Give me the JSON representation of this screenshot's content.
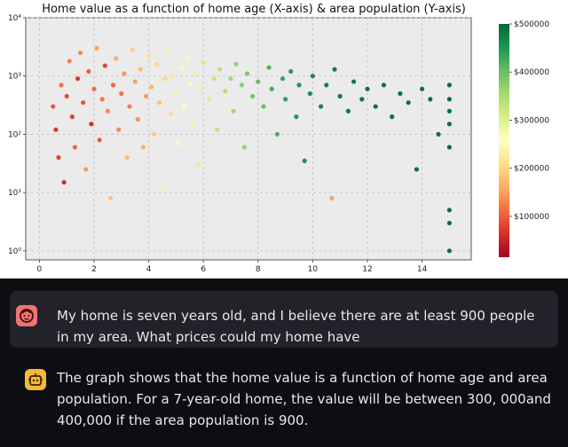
{
  "chart_data": {
    "type": "scatter",
    "title": "Home value as a function of home age (X-axis) & area population (Y-axis)",
    "xlabel": "",
    "ylabel": "",
    "xlim": [
      -0.5,
      15.8
    ],
    "ylim": [
      0.7,
      10000
    ],
    "y_scale": "log",
    "grid": true,
    "x_ticks": [
      0,
      2,
      4,
      6,
      8,
      10,
      12,
      14
    ],
    "x_tick_labels": [
      "0",
      "2",
      "4",
      "6",
      "8",
      "10",
      "12",
      "14"
    ],
    "y_ticks": [
      1,
      10,
      100,
      1000,
      10000
    ],
    "y_tick_labels": [
      "10⁰",
      "10¹",
      "10²",
      "10³",
      "10⁴"
    ],
    "colorbar": {
      "colormap": "RdYlGn",
      "min": 15000,
      "max": 500000,
      "ticks": [
        100000,
        200000,
        300000,
        400000,
        500000
      ],
      "tick_labels": [
        "$100000",
        "$200000",
        "$300000",
        "$400000",
        "$500000"
      ]
    },
    "series": [
      {
        "points": [
          {
            "x": 0.5,
            "y": 300,
            "v": 90000
          },
          {
            "x": 0.6,
            "y": 120,
            "v": 60000
          },
          {
            "x": 0.7,
            "y": 40,
            "v": 70000
          },
          {
            "x": 0.8,
            "y": 700,
            "v": 110000
          },
          {
            "x": 0.9,
            "y": 15,
            "v": 50000
          },
          {
            "x": 1.0,
            "y": 450,
            "v": 80000
          },
          {
            "x": 1.1,
            "y": 1800,
            "v": 120000
          },
          {
            "x": 1.2,
            "y": 200,
            "v": 70000
          },
          {
            "x": 1.3,
            "y": 60,
            "v": 100000
          },
          {
            "x": 1.4,
            "y": 900,
            "v": 60000
          },
          {
            "x": 1.5,
            "y": 2500,
            "v": 130000
          },
          {
            "x": 1.6,
            "y": 350,
            "v": 85000
          },
          {
            "x": 1.7,
            "y": 25,
            "v": 140000
          },
          {
            "x": 1.8,
            "y": 1200,
            "v": 95000
          },
          {
            "x": 1.9,
            "y": 150,
            "v": 55000
          },
          {
            "x": 2.0,
            "y": 600,
            "v": 105000
          },
          {
            "x": 2.1,
            "y": 3000,
            "v": 150000
          },
          {
            "x": 2.2,
            "y": 80,
            "v": 90000
          },
          {
            "x": 2.3,
            "y": 400,
            "v": 115000
          },
          {
            "x": 2.4,
            "y": 1500,
            "v": 75000
          },
          {
            "x": 2.5,
            "y": 250,
            "v": 125000
          },
          {
            "x": 2.6,
            "y": 8,
            "v": 180000
          },
          {
            "x": 2.7,
            "y": 700,
            "v": 100000
          },
          {
            "x": 2.8,
            "y": 2000,
            "v": 160000
          },
          {
            "x": 2.9,
            "y": 120,
            "v": 130000
          },
          {
            "x": 3.0,
            "y": 500,
            "v": 110000
          },
          {
            "x": 3.1,
            "y": 1100,
            "v": 140000
          },
          {
            "x": 3.2,
            "y": 40,
            "v": 170000
          },
          {
            "x": 3.3,
            "y": 300,
            "v": 120000
          },
          {
            "x": 3.4,
            "y": 2800,
            "v": 190000
          },
          {
            "x": 3.5,
            "y": 800,
            "v": 150000
          },
          {
            "x": 3.6,
            "y": 180,
            "v": 135000
          },
          {
            "x": 3.7,
            "y": 1300,
            "v": 175000
          },
          {
            "x": 3.8,
            "y": 60,
            "v": 160000
          },
          {
            "x": 3.9,
            "y": 450,
            "v": 145000
          },
          {
            "x": 4.0,
            "y": 2200,
            "v": 210000
          },
          {
            "x": 4.1,
            "y": 650,
            "v": 165000
          },
          {
            "x": 4.2,
            "y": 100,
            "v": 185000
          },
          {
            "x": 4.3,
            "y": 1600,
            "v": 200000
          },
          {
            "x": 4.4,
            "y": 350,
            "v": 175000
          },
          {
            "x": 4.5,
            "y": 12,
            "v": 230000
          },
          {
            "x": 4.6,
            "y": 900,
            "v": 195000
          },
          {
            "x": 4.7,
            "y": 2600,
            "v": 240000
          },
          {
            "x": 4.8,
            "y": 220,
            "v": 205000
          },
          {
            "x": 4.9,
            "y": 1000,
            "v": 220000
          },
          {
            "x": 5.0,
            "y": 500,
            "v": 235000
          },
          {
            "x": 5.1,
            "y": 70,
            "v": 250000
          },
          {
            "x": 5.2,
            "y": 1400,
            "v": 245000
          },
          {
            "x": 5.3,
            "y": 300,
            "v": 260000
          },
          {
            "x": 5.4,
            "y": 2000,
            "v": 270000
          },
          {
            "x": 5.5,
            "y": 750,
            "v": 255000
          },
          {
            "x": 5.6,
            "y": 150,
            "v": 280000
          },
          {
            "x": 5.7,
            "y": 1100,
            "v": 290000
          },
          {
            "x": 5.8,
            "y": 30,
            "v": 300000
          },
          {
            "x": 5.9,
            "y": 600,
            "v": 285000
          },
          {
            "x": 6.0,
            "y": 1700,
            "v": 310000
          },
          {
            "x": 6.2,
            "y": 400,
            "v": 305000
          },
          {
            "x": 6.4,
            "y": 900,
            "v": 325000
          },
          {
            "x": 6.5,
            "y": 120,
            "v": 330000
          },
          {
            "x": 6.6,
            "y": 1300,
            "v": 335000
          },
          {
            "x": 6.8,
            "y": 550,
            "v": 345000
          },
          {
            "x": 7.0,
            "y": 900,
            "v": 360000
          },
          {
            "x": 7.1,
            "y": 250,
            "v": 355000
          },
          {
            "x": 7.2,
            "y": 1600,
            "v": 370000
          },
          {
            "x": 7.4,
            "y": 700,
            "v": 380000
          },
          {
            "x": 7.5,
            "y": 60,
            "v": 365000
          },
          {
            "x": 7.6,
            "y": 1100,
            "v": 390000
          },
          {
            "x": 7.8,
            "y": 450,
            "v": 395000
          },
          {
            "x": 8.0,
            "y": 800,
            "v": 410000
          },
          {
            "x": 8.2,
            "y": 300,
            "v": 405000
          },
          {
            "x": 8.4,
            "y": 1400,
            "v": 420000
          },
          {
            "x": 8.5,
            "y": 600,
            "v": 430000
          },
          {
            "x": 8.7,
            "y": 100,
            "v": 425000
          },
          {
            "x": 8.9,
            "y": 900,
            "v": 440000
          },
          {
            "x": 9.0,
            "y": 400,
            "v": 445000
          },
          {
            "x": 9.2,
            "y": 1200,
            "v": 450000
          },
          {
            "x": 9.4,
            "y": 200,
            "v": 455000
          },
          {
            "x": 9.5,
            "y": 700,
            "v": 460000
          },
          {
            "x": 9.7,
            "y": 35,
            "v": 465000
          },
          {
            "x": 9.9,
            "y": 500,
            "v": 470000
          },
          {
            "x": 10.0,
            "y": 1000,
            "v": 475000
          },
          {
            "x": 10.3,
            "y": 300,
            "v": 478000
          },
          {
            "x": 10.5,
            "y": 700,
            "v": 480000
          },
          {
            "x": 10.7,
            "y": 8,
            "v": 150000
          },
          {
            "x": 10.8,
            "y": 1300,
            "v": 485000
          },
          {
            "x": 11.0,
            "y": 450,
            "v": 488000
          },
          {
            "x": 11.3,
            "y": 250,
            "v": 490000
          },
          {
            "x": 11.5,
            "y": 800,
            "v": 492000
          },
          {
            "x": 11.8,
            "y": 400,
            "v": 494000
          },
          {
            "x": 12.0,
            "y": 600,
            "v": 495000
          },
          {
            "x": 12.3,
            "y": 300,
            "v": 496000
          },
          {
            "x": 12.6,
            "y": 700,
            "v": 497000
          },
          {
            "x": 12.9,
            "y": 200,
            "v": 498000
          },
          {
            "x": 13.2,
            "y": 500,
            "v": 498000
          },
          {
            "x": 13.5,
            "y": 350,
            "v": 499000
          },
          {
            "x": 13.8,
            "y": 25,
            "v": 499000
          },
          {
            "x": 14.0,
            "y": 600,
            "v": 499000
          },
          {
            "x": 14.3,
            "y": 400,
            "v": 499000
          },
          {
            "x": 14.6,
            "y": 100,
            "v": 500000
          },
          {
            "x": 15.0,
            "y": 700,
            "v": 500000
          },
          {
            "x": 15.0,
            "y": 400,
            "v": 500000
          },
          {
            "x": 15.0,
            "y": 250,
            "v": 500000
          },
          {
            "x": 15.0,
            "y": 150,
            "v": 500000
          },
          {
            "x": 15.0,
            "y": 60,
            "v": 500000
          },
          {
            "x": 15.0,
            "y": 5,
            "v": 500000
          },
          {
            "x": 15.0,
            "y": 1,
            "v": 500000
          },
          {
            "x": 15.0,
            "y": 3,
            "v": 500000
          }
        ]
      }
    ]
  },
  "chat": {
    "user_message": "My home is seven years old, and I believe there are at least 900 people in my area. What prices could my home have",
    "bot_message": "The graph shows that the home value is a function of home age and area population. For a 7-year-old home, the value will be between 300, 000and 400,000 if the area population is 900."
  }
}
